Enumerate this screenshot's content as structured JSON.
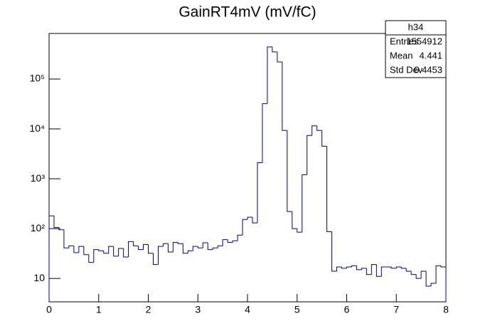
{
  "chart_data": {
    "type": "histogram",
    "title": "GainRT4mV (mV/fC)",
    "bins": [
      0,
      0.1,
      0.2,
      0.3,
      0.4,
      0.5,
      0.6,
      0.7,
      0.8,
      0.9,
      1,
      1.1,
      1.2,
      1.3,
      1.4,
      1.5,
      1.6,
      1.7,
      1.8,
      1.9,
      2,
      2.1,
      2.2,
      2.3,
      2.4,
      2.5,
      2.6,
      2.7,
      2.8,
      2.9,
      3,
      3.1,
      3.2,
      3.3,
      3.4,
      3.5,
      3.6,
      3.7,
      3.8,
      3.9,
      4,
      4.1,
      4.2,
      4.3,
      4.4,
      4.5,
      4.6,
      4.7,
      4.8,
      4.9,
      5,
      5.1,
      5.2,
      5.3,
      5.4,
      5.5,
      5.6,
      5.7,
      5.8,
      5.9,
      6,
      6.1,
      6.2,
      6.3,
      6.4,
      6.5,
      6.6,
      6.7,
      6.8,
      6.9,
      7,
      7.1,
      7.2,
      7.3,
      7.4,
      7.5,
      7.6,
      7.7,
      7.8,
      7.9,
      8
    ],
    "values": [
      180,
      105,
      95,
      41,
      45,
      33,
      44,
      30,
      21,
      38,
      36,
      32,
      44,
      28,
      40,
      27,
      55,
      45,
      38,
      48,
      32,
      19,
      44,
      50,
      34,
      53,
      50,
      32,
      36,
      44,
      41,
      52,
      38,
      41,
      45,
      60,
      53,
      57,
      74,
      153,
      169,
      130,
      2100,
      32000,
      440000,
      350000,
      220000,
      9300,
      220,
      100,
      85,
      1200,
      7400,
      11500,
      9300,
      4500,
      87,
      14,
      17,
      16,
      17,
      18,
      15,
      16,
      12,
      19,
      11,
      17,
      17,
      16,
      17,
      16,
      14,
      12,
      10,
      14,
      7,
      8,
      18,
      17
    ],
    "color": "#000080",
    "xlim": [
      0,
      8
    ],
    "xticks": [
      0,
      1,
      2,
      3,
      4,
      5,
      6,
      7,
      8
    ],
    "ylim": [
      3.4,
      820000
    ],
    "log_y": true,
    "yticks": [
      {
        "value": 10,
        "label": "10"
      },
      {
        "value": 100,
        "label": "10²"
      },
      {
        "value": 1000,
        "label": "10³"
      },
      {
        "value": 10000,
        "label": "10⁴"
      },
      {
        "value": 100000,
        "label": "10⁵"
      }
    ],
    "stats": {
      "name": "h34",
      "rows": [
        [
          "Entries",
          "1554912"
        ],
        [
          "Mean",
          "4.441"
        ],
        [
          "Std Dev",
          "0.4453"
        ]
      ]
    }
  }
}
